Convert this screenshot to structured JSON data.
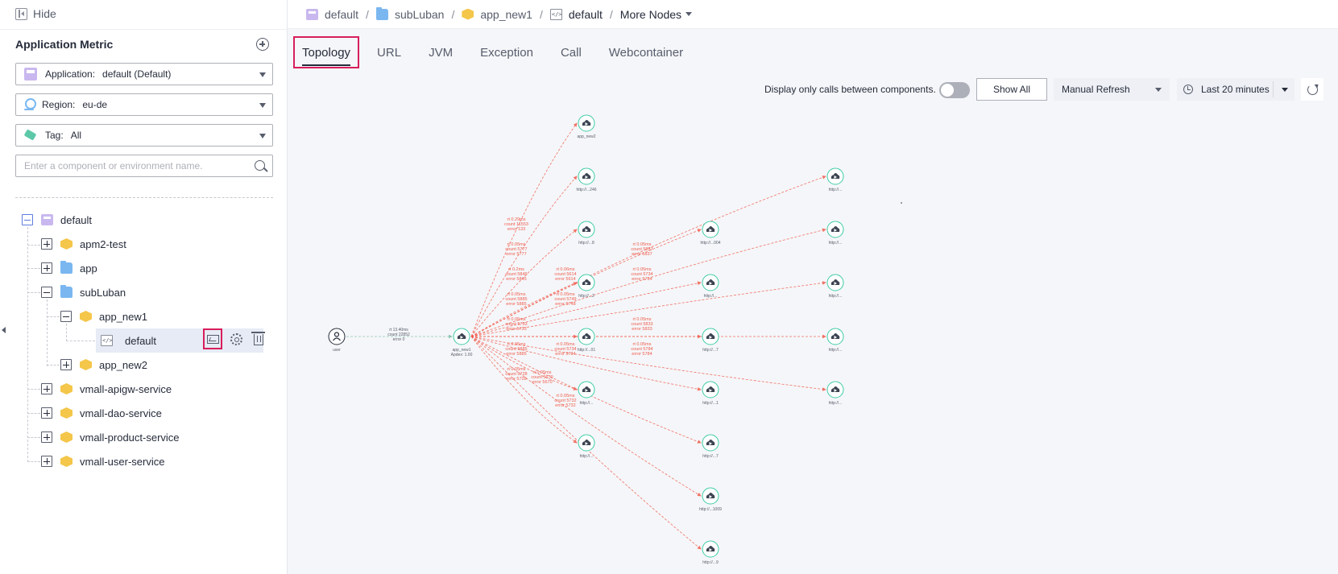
{
  "sidebar": {
    "hide_label": "Hide",
    "title": "Application Metric",
    "application_select": {
      "label": "Application:",
      "value": "default (Default)"
    },
    "region_select": {
      "label": "Region:",
      "value": "eu-de"
    },
    "tag_select": {
      "label": "Tag:",
      "value": "All"
    },
    "search_placeholder": "Enter a component or environment name.",
    "tree": {
      "root": "default",
      "items": [
        "apm2-test",
        "app",
        "subLuban",
        "app_new1",
        "default",
        "app_new2",
        "vmall-apigw-service",
        "vmall-dao-service",
        "vmall-product-service",
        "vmall-user-service"
      ]
    }
  },
  "breadcrumb": {
    "items": [
      "default",
      "subLuban",
      "app_new1",
      "default"
    ],
    "more": "More Nodes"
  },
  "tabs": [
    "Topology",
    "URL",
    "JVM",
    "Exception",
    "Call",
    "Webcontainer"
  ],
  "toolbar": {
    "calls_label": "Display only calls between components.",
    "show_all": "Show All",
    "refresh_mode": "Manual Refresh",
    "time_range": "Last 20 minutes"
  },
  "topology": {
    "user_label": "user",
    "center_label": "app_new1",
    "center_apdex": "Apdex: 1.00",
    "first_edge": [
      "rt 13.40ms",
      "count 22852",
      "error 0"
    ],
    "nodes": [
      {
        "label": "app_new2"
      },
      {
        "label": "http://...246"
      },
      {
        "label": "http://...8"
      },
      {
        "label": "http://...2"
      },
      {
        "label": "http://...01"
      },
      {
        "label": "http://..."
      },
      {
        "label": "http://..."
      },
      {
        "label": "http://...004"
      },
      {
        "label": "http://..."
      },
      {
        "label": "http://...7"
      },
      {
        "label": "http://...1"
      },
      {
        "label": "http://...7"
      },
      {
        "label": "http://...1009"
      },
      {
        "label": "http://...9"
      },
      {
        "label": "http://..."
      },
      {
        "label": "http://..."
      },
      {
        "label": "http://..."
      },
      {
        "label": "http://..."
      },
      {
        "label": "http://..."
      }
    ],
    "edge_labels": [
      [
        "rt 0.29ms",
        "count 11553",
        "error 133"
      ],
      [
        "rt 0.05ms",
        "count 5777",
        "error 5777"
      ],
      [
        "rt 0.2ms",
        "count 5845",
        "error 5845"
      ],
      [
        "rt 0.05ms",
        "count 5885",
        "error 5885"
      ],
      [
        "rt 0.06ms",
        "count 5614",
        "error 5614"
      ],
      [
        "rt 0.05ms",
        "count 5749",
        "error 5748"
      ],
      [
        "rt 0.05ms",
        "count 5733",
        "error 5733"
      ],
      [
        "rt 0.05ms",
        "count 5885",
        "error 5885"
      ],
      [
        "rt 0.05ms",
        "count 5728",
        "error 5728"
      ],
      [
        "rt 0.05ms",
        "count 5670",
        "error 5670"
      ],
      [
        "rt 0.05ms",
        "count 5734",
        "error 5734"
      ],
      [
        "rt 0.05ms",
        "count 5732",
        "error 5732"
      ],
      [
        "rt 0.05ms",
        "count 5837",
        "error 5837"
      ],
      [
        "rt 0.05ms",
        "count 5734",
        "error 5734"
      ],
      [
        "rt 0.05ms",
        "count 5833",
        "error 5833"
      ],
      [
        "rt 0.05ms",
        "count 5784",
        "error 5784"
      ]
    ]
  },
  "colors": {
    "accent": "#5e7ce0",
    "highlight": "#d81e5b",
    "node": "#3dcca6",
    "edge": "#f05b4b"
  }
}
